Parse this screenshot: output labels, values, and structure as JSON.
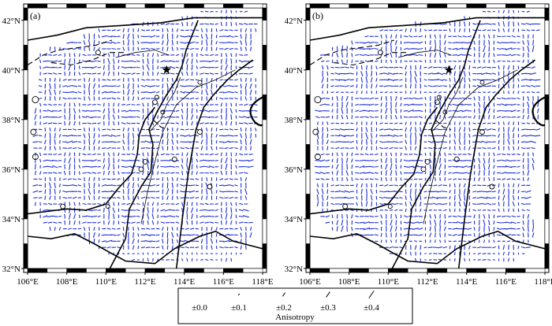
{
  "panels": [
    {
      "label": "(a)"
    },
    {
      "label": "(b)"
    }
  ],
  "axes": {
    "lon_ticks": [
      "106°E",
      "108°E",
      "110°E",
      "112°E",
      "114°E",
      "116°E",
      "118°E"
    ],
    "lat_ticks": [
      "42°N",
      "40°N",
      "38°N",
      "36°N",
      "34°N",
      "32°N"
    ],
    "lon_range": [
      106,
      118
    ],
    "lat_range": [
      32,
      42.5
    ]
  },
  "legend": {
    "title": "Anisotropy",
    "items": [
      {
        "label": "±0.0",
        "value": 0.0
      },
      {
        "label": "±0.1",
        "value": 0.1
      },
      {
        "label": "±0.2",
        "value": 0.2
      },
      {
        "label": "±0.3",
        "value": 0.3
      },
      {
        "label": "±0.4",
        "value": 0.4
      }
    ]
  },
  "colors": {
    "bars": "#1f2fd6",
    "outline": "#000000"
  }
}
